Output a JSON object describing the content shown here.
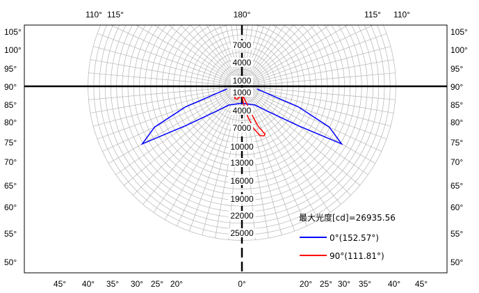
{
  "chart_data": {
    "type": "polar-photometric",
    "top_angle_labels": [
      "110°",
      "115°",
      "180°",
      "115°",
      "110°"
    ],
    "left_angle_labels": [
      "105°",
      "100°",
      "95°",
      "90°",
      "85°",
      "80°",
      "75°",
      "70°",
      "65°",
      "60°",
      "55°",
      "50°"
    ],
    "right_angle_labels": [
      "105°",
      "100°",
      "95°",
      "90°",
      "85°",
      "80°",
      "75°",
      "70°",
      "65°",
      "60°",
      "55°",
      "50°"
    ],
    "bottom_angle_labels_left": [
      "45°",
      "40°",
      "35°",
      "30°",
      "25°",
      "20°"
    ],
    "bottom_angle_labels_center": "0°",
    "bottom_angle_labels_right": [
      "20°",
      "25°",
      "30°",
      "35°",
      "40°",
      "45°"
    ],
    "radial_labels_upper": [
      "1000",
      "4000",
      "7000"
    ],
    "radial_labels_lower": [
      "1000",
      "4000",
      "7000",
      "10000",
      "13000",
      "16000",
      "19000",
      "22000",
      "25000"
    ],
    "max_intensity_label": "最大光度[cd]=26935.56",
    "legend": [
      {
        "label": "0°(152.57°)",
        "color": "#0000ff"
      },
      {
        "label": "90°(111.81°)",
        "color": "#ff0000"
      }
    ],
    "series": [
      {
        "name": "0°(152.57°)",
        "color": "#0000ff",
        "points": [
          [
            -80,
            2660
          ],
          [
            -70,
            10500
          ],
          [
            -65,
            16900
          ],
          [
            -60,
            20200
          ],
          [
            -55,
            12000
          ],
          [
            -45,
            6000
          ],
          [
            -35,
            4000
          ],
          [
            -25,
            3500
          ],
          [
            -15,
            3200
          ],
          [
            -5,
            3000
          ],
          [
            5,
            3000
          ],
          [
            15,
            3200
          ],
          [
            25,
            3500
          ],
          [
            35,
            4000
          ],
          [
            45,
            6000
          ],
          [
            55,
            12000
          ],
          [
            60,
            20200
          ],
          [
            65,
            16900
          ],
          [
            70,
            10500
          ],
          [
            80,
            2660
          ]
        ]
      },
      {
        "name": "90°(111.81°)",
        "color": "#ff0000",
        "points": [
          [
            -38,
            2000
          ],
          [
            -30,
            2500
          ],
          [
            -20,
            2400
          ],
          [
            -10,
            1800
          ],
          [
            0,
            1500
          ],
          [
            10,
            2000
          ],
          [
            18,
            4500
          ],
          [
            22,
            7500
          ],
          [
            25,
            8900
          ],
          [
            26,
            9300
          ],
          [
            24,
            9500
          ],
          [
            20,
            9200
          ],
          [
            15,
            7500
          ],
          [
            10,
            5000
          ],
          [
            5,
            3000
          ],
          [
            0,
            1500
          ],
          [
            -10,
            900
          ],
          [
            -20,
            700
          ],
          [
            -30,
            900
          ],
          [
            -38,
            2000
          ]
        ]
      }
    ],
    "max_radius_cd": 27000,
    "grid": true
  }
}
